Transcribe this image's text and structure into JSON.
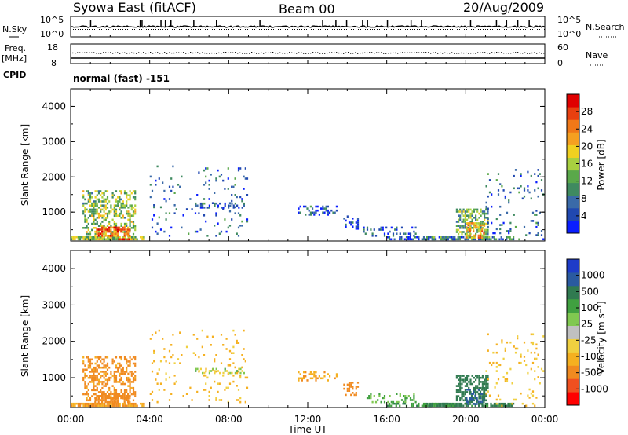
{
  "header": {
    "station": "Syowa East (fitACF)",
    "beam": "Beam 00",
    "date": "20/Aug/2009"
  },
  "strip1": {
    "left_label": "N.Sky",
    "right_label": "N.Search",
    "left_ticks": [
      "10^5",
      "10^0"
    ],
    "right_ticks": [
      "10^5",
      "10^0"
    ]
  },
  "strip2": {
    "left_label_1": "Freq.",
    "left_label_2": "[MHz]",
    "right_label": "Nave",
    "left_ticks": [
      "18",
      "8"
    ],
    "right_ticks": [
      "60",
      "0"
    ],
    "cpid_label": "CPID",
    "cpid_text": "normal (fast) -151"
  },
  "colors": {
    "axis": "#000000",
    "power_scale": [
      "#0a1eff",
      "#2048b0",
      "#3a6aa8",
      "#3f8a60",
      "#5aa84a",
      "#a8d040",
      "#f0d020",
      "#f5a020",
      "#f07818",
      "#e84010",
      "#e00000"
    ],
    "velocity_scale": [
      "#ff0000",
      "#f05020",
      "#f08a20",
      "#f5b020",
      "#f0d040",
      "#c0c0c0",
      "#80c850",
      "#40a040",
      "#307a50",
      "#2a5aa0",
      "#1e3cc8"
    ]
  },
  "chart_data": [
    {
      "type": "heatmap",
      "panel": "power",
      "ylabel": "Slant Range [km]",
      "y_ticks": [
        "4000",
        "3000",
        "2000",
        "1000"
      ],
      "ylim": [
        180,
        4500
      ],
      "xlim": [
        0,
        24
      ],
      "x_ticks": [
        "00:00",
        "04:00",
        "08:00",
        "12:00",
        "16:00",
        "20:00",
        "00:00"
      ],
      "colorbar_label": "Power [dB]",
      "colorbar_ticks": [
        "28",
        "24",
        "20",
        "16",
        "12",
        "8",
        "4"
      ],
      "zlim": [
        0,
        30
      ],
      "blobs": [
        {
          "t0": 0.0,
          "t1": 3.8,
          "r0": 200,
          "r1": 300,
          "z": 14,
          "d": 0.85
        },
        {
          "t0": 0.6,
          "t1": 3.3,
          "r0": 350,
          "r1": 1600,
          "z": 14,
          "d": 0.45
        },
        {
          "t0": 1.2,
          "t1": 3.0,
          "r0": 300,
          "r1": 600,
          "z": 24,
          "d": 0.6
        },
        {
          "t0": 2.4,
          "t1": 3.0,
          "r0": 200,
          "r1": 260,
          "z": 30,
          "d": 0.9
        },
        {
          "t0": 4.0,
          "t1": 9.0,
          "r0": 300,
          "r1": 2300,
          "z": 6,
          "d": 0.06
        },
        {
          "t0": 6.2,
          "t1": 8.8,
          "r0": 1100,
          "r1": 1250,
          "z": 5,
          "d": 0.35
        },
        {
          "t0": 11.5,
          "t1": 13.5,
          "r0": 900,
          "r1": 1200,
          "z": 5,
          "d": 0.3
        },
        {
          "t0": 13.8,
          "t1": 14.6,
          "r0": 500,
          "r1": 900,
          "z": 4,
          "d": 0.35
        },
        {
          "t0": 14.8,
          "t1": 17.5,
          "r0": 300,
          "r1": 600,
          "z": 5,
          "d": 0.3
        },
        {
          "t0": 16.0,
          "t1": 19.5,
          "r0": 200,
          "r1": 320,
          "z": 4,
          "d": 0.55
        },
        {
          "t0": 18.0,
          "t1": 22.5,
          "r0": 200,
          "r1": 300,
          "z": 8,
          "d": 0.7
        },
        {
          "t0": 19.5,
          "t1": 21.2,
          "r0": 350,
          "r1": 1100,
          "z": 12,
          "d": 0.55
        },
        {
          "t0": 20.0,
          "t1": 21.0,
          "r0": 250,
          "r1": 700,
          "z": 20,
          "d": 0.6
        },
        {
          "t0": 21.0,
          "t1": 24.0,
          "r0": 200,
          "r1": 2200,
          "z": 6,
          "d": 0.08
        }
      ]
    },
    {
      "type": "heatmap",
      "panel": "velocity",
      "ylabel": "Slant Range [km]",
      "y_ticks": [
        "4000",
        "3000",
        "2000",
        "1000"
      ],
      "ylim": [
        180,
        4500
      ],
      "xlim": [
        0,
        24
      ],
      "x_ticks": [
        "00:00",
        "04:00",
        "08:00",
        "12:00",
        "16:00",
        "20:00",
        "00:00"
      ],
      "xlabel": "Time UT",
      "colorbar_label": "Velocity [m s⁻¹]",
      "colorbar_ticks": [
        "1000",
        "500",
        "100",
        "25",
        "-25",
        "-100",
        "-500",
        "-1000"
      ],
      "blobs": [
        {
          "t0": 0.0,
          "t1": 3.8,
          "r0": 200,
          "r1": 300,
          "z": -120,
          "d": 0.85
        },
        {
          "t0": 0.6,
          "t1": 3.3,
          "r0": 350,
          "r1": 1600,
          "z": -150,
          "d": 0.45
        },
        {
          "t0": 1.2,
          "t1": 3.0,
          "r0": 300,
          "r1": 600,
          "z": -300,
          "d": 0.6
        },
        {
          "t0": 4.0,
          "t1": 9.0,
          "r0": 300,
          "r1": 2300,
          "z": -40,
          "d": 0.06
        },
        {
          "t0": 6.2,
          "t1": 8.8,
          "r0": 1100,
          "r1": 1250,
          "z": 0,
          "d": 0.35
        },
        {
          "t0": 11.5,
          "t1": 13.5,
          "r0": 900,
          "r1": 1200,
          "z": -80,
          "d": 0.3
        },
        {
          "t0": 13.8,
          "t1": 14.6,
          "r0": 500,
          "r1": 900,
          "z": -200,
          "d": 0.35
        },
        {
          "t0": 14.8,
          "t1": 17.5,
          "r0": 300,
          "r1": 600,
          "z": 30,
          "d": 0.3
        },
        {
          "t0": 16.0,
          "t1": 19.5,
          "r0": 200,
          "r1": 320,
          "z": 80,
          "d": 0.55
        },
        {
          "t0": 18.0,
          "t1": 22.5,
          "r0": 200,
          "r1": 300,
          "z": 150,
          "d": 0.7
        },
        {
          "t0": 19.5,
          "t1": 21.2,
          "r0": 350,
          "r1": 1100,
          "z": 300,
          "d": 0.55
        },
        {
          "t0": 20.0,
          "t1": 21.0,
          "r0": 250,
          "r1": 700,
          "z": 600,
          "d": 0.6
        },
        {
          "t0": 21.0,
          "t1": 24.0,
          "r0": 200,
          "r1": 2200,
          "z": -30,
          "d": 0.08
        }
      ]
    }
  ]
}
